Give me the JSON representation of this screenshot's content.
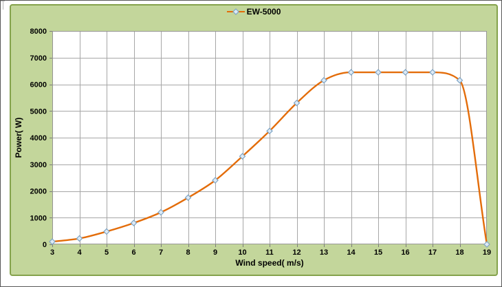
{
  "chart_data": {
    "type": "line",
    "series": [
      {
        "name": "EW-5000",
        "x": [
          3,
          4,
          5,
          6,
          7,
          8,
          9,
          10,
          11,
          12,
          13,
          14,
          15,
          16,
          17,
          18,
          19
        ],
        "values": [
          100,
          220,
          480,
          800,
          1200,
          1750,
          2400,
          3300,
          4250,
          5300,
          6150,
          6450,
          6450,
          6450,
          6450,
          6150,
          0
        ],
        "line_color": "#E36C09",
        "marker": "diamond",
        "marker_fill": "#DEEAF5",
        "marker_stroke": "#7FA5C5"
      }
    ],
    "xlabel": "Wind speed( m/s)",
    "ylabel": "Power( W)",
    "xlim": [
      3,
      19
    ],
    "ylim": [
      0,
      8000
    ],
    "x_ticks": [
      3,
      4,
      5,
      6,
      7,
      8,
      9,
      10,
      11,
      12,
      13,
      14,
      15,
      16,
      17,
      18,
      19
    ],
    "y_ticks": [
      0,
      1000,
      2000,
      3000,
      4000,
      5000,
      6000,
      7000,
      8000
    ],
    "grid": true,
    "smooth_line": true,
    "legend_position": "top-center",
    "colors": {
      "chart_bg": "#C3D69B",
      "chart_border": "#84A24B",
      "plot_bg": "#FFFFFF",
      "gridline": "#A6A6A6",
      "plot_border": "#969696",
      "tick": "#7A7A7A",
      "text": "#000000"
    }
  }
}
